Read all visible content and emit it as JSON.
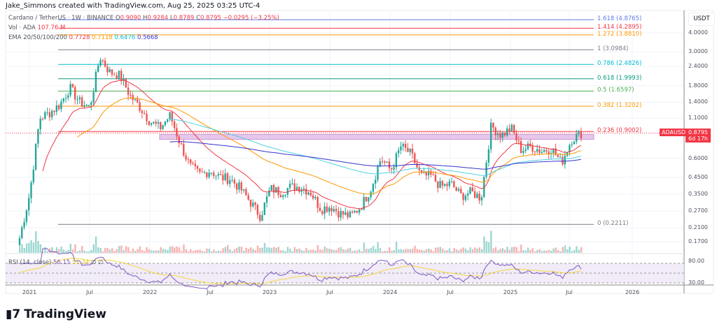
{
  "credit": "Jake_Simmons created with TradingView.com, Aug 25, 2025 03:25 UTC-4",
  "legend": {
    "symbol": "Cardano / TetherUS · 1W · BINANCE",
    "o_label": "O",
    "o": "0.9090",
    "h_label": "H",
    "h": "0.9284",
    "l_label": "L",
    "l": "0.8789",
    "c_label": "C",
    "c": "0.8795",
    "change": "−0.0295 (−3.25%)",
    "vol_label": "Vol · ADA",
    "vol": "107.76 M",
    "ema_label": "EMA 20/50/100/200",
    "ema20": "0.7728",
    "ema50": "0.7118",
    "ema100": "0.6476",
    "ema200": "0.5668",
    "rsi_label": "RSI (14, close)",
    "rsi": "56.15",
    "rsi_ma": "51.34"
  },
  "colors": {
    "up": "#26a69a",
    "down": "#ef5350",
    "ema20": "#f23645",
    "ema50": "#ff9800",
    "ema100": "#4dd0e1",
    "ema200": "#3333cc",
    "rsi": "#7e57c2",
    "rsi_ma": "#f5d63d"
  },
  "fib": [
    {
      "label": "1.618 (4.8765)",
      "price": 4.8765,
      "color": "#5b7be8"
    },
    {
      "label": "1.414 (4.2895)",
      "price": 4.2895,
      "color": "#f23645"
    },
    {
      "label": "1.272 (3.8810)",
      "price": 3.881,
      "color": "#ff9800"
    },
    {
      "label": "1 (3.0984)",
      "price": 3.0984,
      "color": "#787b86"
    },
    {
      "label": "0.786 (2.4826)",
      "price": 2.4826,
      "color": "#00bcd4"
    },
    {
      "label": "0.618 (1.9993)",
      "price": 1.9993,
      "color": "#089981"
    },
    {
      "label": "0.5 (1.6597)",
      "price": 1.6597,
      "color": "#4caf50"
    },
    {
      "label": "0.382 (1.3202)",
      "price": 1.3202,
      "color": "#ff9800"
    },
    {
      "label": "0.236 (0.9002)",
      "price": 0.9002,
      "color": "#f23645"
    },
    {
      "label": "0 (0.2211)",
      "price": 0.2211,
      "color": "#787b86"
    }
  ],
  "axis": {
    "unit": "USDT",
    "price_ticks": [
      "4.0000",
      "3.0000",
      "2.4000",
      "1.8000",
      "1.4000",
      "1.1000",
      "0.6000",
      "0.4500",
      "0.3500",
      "0.2700",
      "0.2100",
      "0.1700"
    ],
    "rsi_ticks": [
      "80.00",
      "30.00"
    ],
    "x_ticks": [
      "2021",
      "Jul",
      "2022",
      "Jul",
      "2023",
      "Jul",
      "2024",
      "Jul",
      "2025",
      "Jul",
      "2026"
    ]
  },
  "price_tag": {
    "symbol": "ADAUSDT",
    "price": "0.8795",
    "countdown": "6d 17h"
  },
  "logo": "TradingView",
  "chart_data": {
    "type": "candlestick",
    "scale": "log",
    "ylim": [
      0.15,
      5.2
    ],
    "x_start": "2020-12",
    "x_step": "month",
    "monthly_close": [
      0.18,
      0.35,
      1.1,
      1.2,
      1.35,
      1.75,
      1.4,
      1.3,
      2.8,
      2.2,
      2.1,
      1.55,
      1.3,
      1.05,
      0.95,
      1.15,
      0.75,
      0.53,
      0.47,
      0.5,
      0.45,
      0.44,
      0.38,
      0.31,
      0.25,
      0.38,
      0.36,
      0.39,
      0.39,
      0.36,
      0.28,
      0.29,
      0.26,
      0.25,
      0.29,
      0.38,
      0.6,
      0.5,
      0.72,
      0.64,
      0.46,
      0.46,
      0.39,
      0.41,
      0.34,
      0.36,
      0.33,
      0.98,
      0.85,
      0.95,
      0.68,
      0.72,
      0.67,
      0.7,
      0.56,
      0.8,
      0.88
    ],
    "zone": [
      0.8,
      0.86
    ]
  }
}
